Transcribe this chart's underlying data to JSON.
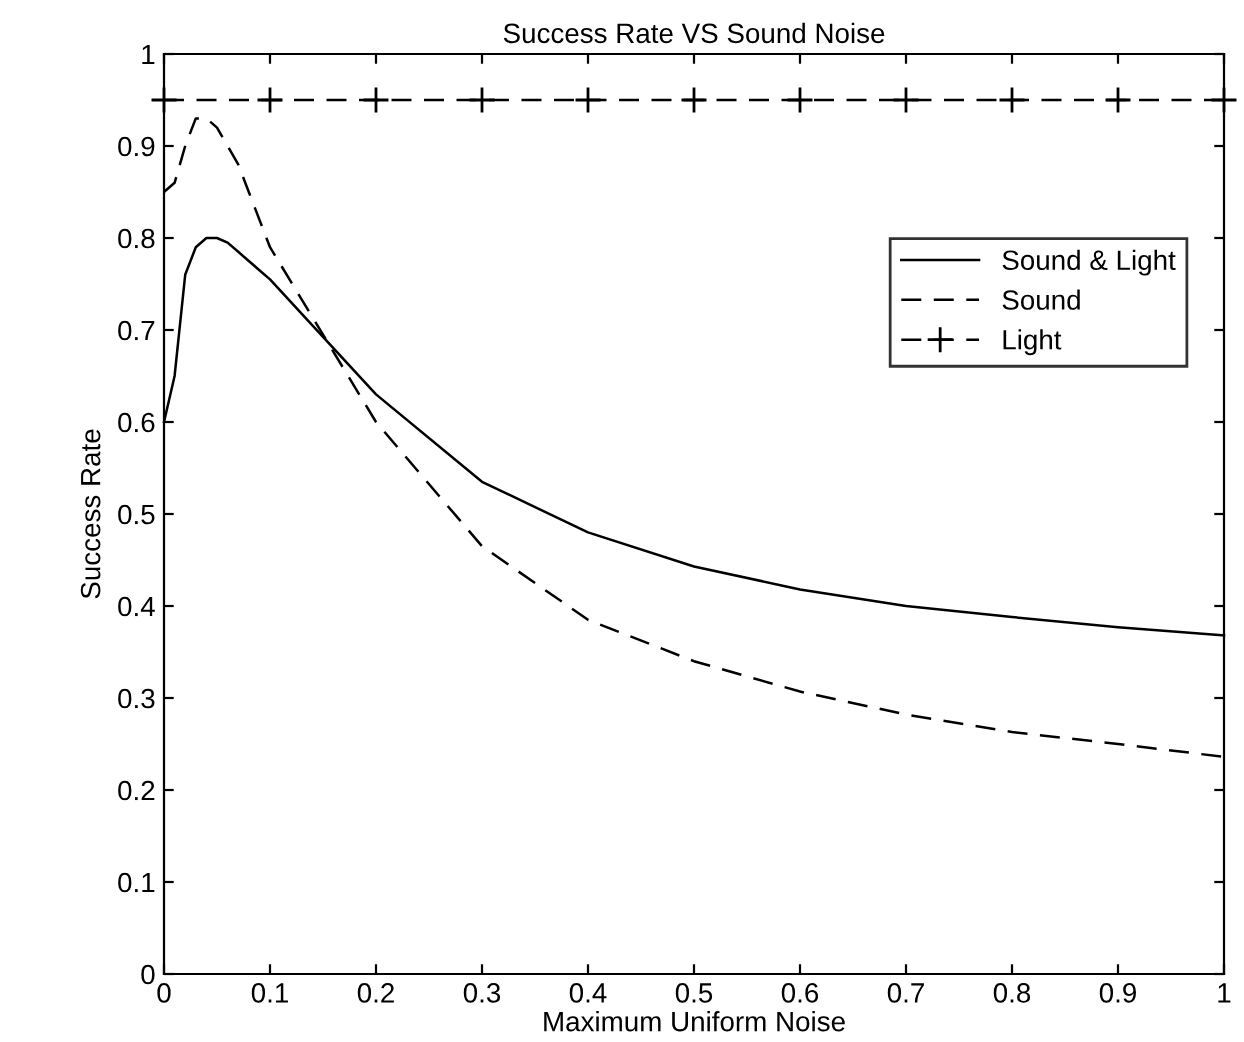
{
  "chart_data": {
    "type": "line",
    "title": "Success Rate VS Sound Noise",
    "xlabel": "Maximum Uniform Noise",
    "ylabel": "Success Rate",
    "xlim": [
      0,
      1
    ],
    "ylim": [
      0,
      1
    ],
    "xticks": [
      0,
      0.1,
      0.2,
      0.3,
      0.4,
      0.5,
      0.6,
      0.7,
      0.8,
      0.9,
      1
    ],
    "yticks": [
      0,
      0.1,
      0.2,
      0.3,
      0.4,
      0.5,
      0.6,
      0.7,
      0.8,
      0.9,
      1
    ],
    "grid": false,
    "legend": "right",
    "series": [
      {
        "name": "Sound & Light",
        "color": "#000000",
        "line_style": "solid",
        "marker": "none",
        "x": [
          0,
          0.01,
          0.02,
          0.03,
          0.04,
          0.05,
          0.06,
          0.07,
          0.08,
          0.09,
          0.1,
          0.2,
          0.3,
          0.4,
          0.5,
          0.6,
          0.7,
          0.8,
          0.9,
          1
        ],
        "values": [
          0.6,
          0.65,
          0.76,
          0.79,
          0.8,
          0.8,
          0.795,
          0.785,
          0.775,
          0.765,
          0.755,
          0.63,
          0.535,
          0.48,
          0.443,
          0.418,
          0.4,
          0.388,
          0.377,
          0.368
        ]
      },
      {
        "name": "Sound",
        "color": "#000000",
        "line_style": "dashed",
        "marker": "none",
        "x": [
          0,
          0.01,
          0.02,
          0.03,
          0.04,
          0.05,
          0.06,
          0.07,
          0.08,
          0.09,
          0.1,
          0.2,
          0.3,
          0.4,
          0.5,
          0.6,
          0.7,
          0.8,
          0.9,
          1
        ],
        "values": [
          0.85,
          0.86,
          0.9,
          0.93,
          0.93,
          0.92,
          0.9,
          0.88,
          0.85,
          0.82,
          0.79,
          0.6,
          0.465,
          0.385,
          0.34,
          0.307,
          0.282,
          0.263,
          0.25,
          0.236
        ]
      },
      {
        "name": "Light",
        "color": "#000000",
        "line_style": "dashed",
        "marker": "cross",
        "x": [
          0,
          0.1,
          0.2,
          0.3,
          0.4,
          0.5,
          0.6,
          0.7,
          0.8,
          0.9,
          1
        ],
        "values": [
          0.95,
          0.95,
          0.95,
          0.95,
          0.95,
          0.95,
          0.95,
          0.95,
          0.95,
          0.95,
          0.95
        ]
      }
    ]
  }
}
